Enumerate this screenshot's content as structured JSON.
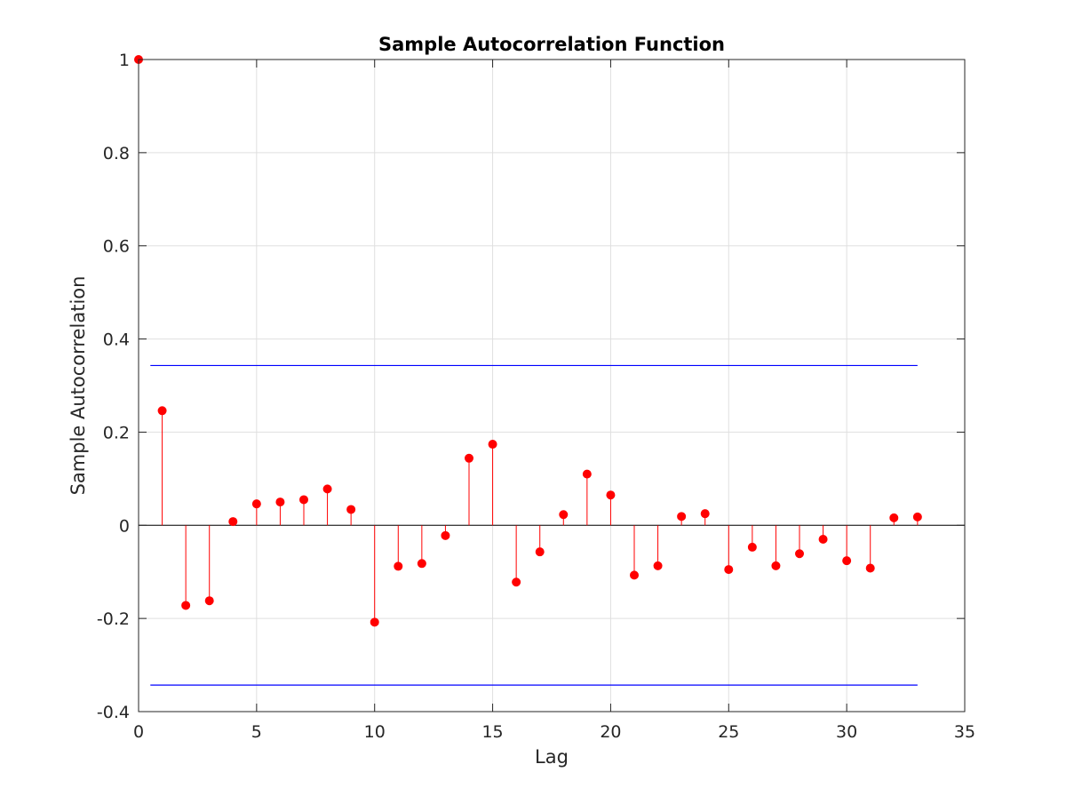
{
  "chart_data": {
    "type": "stem",
    "title": "Sample Autocorrelation Function",
    "xlabel": "Lag",
    "ylabel": "Sample Autocorrelation",
    "xlim": [
      0,
      35
    ],
    "ylim": [
      -0.4,
      1
    ],
    "xticks": [
      "0",
      "5",
      "10",
      "15",
      "20",
      "25",
      "30",
      "35"
    ],
    "yticks": [
      "-0.4",
      "-0.2",
      "0",
      "0.2",
      "0.4",
      "0.6",
      "0.8",
      "1"
    ],
    "grid": true,
    "lags": [
      0,
      1,
      2,
      3,
      4,
      5,
      6,
      7,
      8,
      9,
      10,
      11,
      12,
      13,
      14,
      15,
      16,
      17,
      18,
      19,
      20,
      21,
      22,
      23,
      24,
      25,
      26,
      27,
      28,
      29,
      30,
      31,
      32,
      33
    ],
    "acf": [
      1.0,
      0.246,
      -0.172,
      -0.162,
      0.008,
      0.046,
      0.05,
      0.055,
      0.078,
      0.034,
      -0.208,
      -0.088,
      -0.082,
      -0.022,
      0.144,
      0.174,
      -0.122,
      -0.057,
      0.023,
      0.11,
      0.065,
      -0.107,
      -0.087,
      0.019,
      0.025,
      -0.095,
      -0.047,
      -0.087,
      -0.061,
      -0.03,
      -0.076,
      -0.092,
      0.016,
      0.018
    ],
    "confidence_bounds": {
      "upper": 0.343,
      "lower": -0.343,
      "x_range": [
        0.5,
        33
      ]
    },
    "colors": {
      "stem": "#ff0000",
      "bounds": "#0000ff",
      "zero_line": "#000000",
      "grid": "#dfdfdf",
      "axes": "#262626"
    }
  }
}
